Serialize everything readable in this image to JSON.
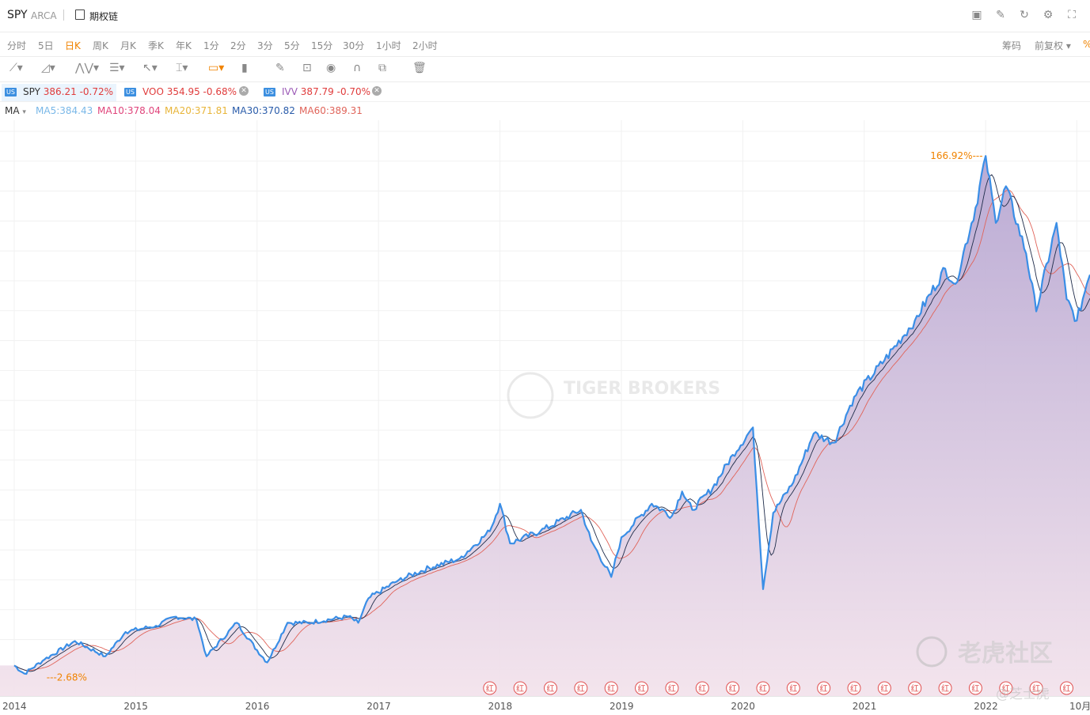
{
  "header": {
    "symbol": "SPY",
    "exchange": "ARCA",
    "options_chain": "期权链"
  },
  "periods": [
    "分时",
    "5日",
    "日K",
    "周K",
    "月K",
    "季K",
    "年K",
    "1分",
    "2分",
    "3分",
    "5分",
    "15分",
    "30分",
    "1小时",
    "2小时"
  ],
  "active_period": "日K",
  "right_controls": {
    "chips": "筹码",
    "adjust": "前复权",
    "percent": "%"
  },
  "comparisons": [
    {
      "badge": "US",
      "symbol": "SPY",
      "price": "386.21",
      "change": "-0.72%",
      "color": "#333333"
    },
    {
      "badge": "US",
      "symbol": "VOO",
      "price": "354.95",
      "change": "-0.68%",
      "color": "#e03c3c"
    },
    {
      "badge": "US",
      "symbol": "IVV",
      "price": "387.79",
      "change": "-0.70%",
      "color": "#9b59b6"
    }
  ],
  "indicator": {
    "name": "MA",
    "lines": [
      {
        "label": "MA5:384.43",
        "color": "#7ab8e8"
      },
      {
        "label": "MA10:378.04",
        "color": "#e0457b"
      },
      {
        "label": "MA20:371.81",
        "color": "#e8b53a"
      },
      {
        "label": "MA30:370.82",
        "color": "#2a5caa"
      },
      {
        "label": "MA60:389.31",
        "color": "#e0645a"
      }
    ]
  },
  "chart_data": {
    "type": "line",
    "series": [
      {
        "name": "SPY",
        "color": "#3a8ee6",
        "points": [
          [
            "2014-01",
            0.0
          ],
          [
            "2014-02",
            -2.68
          ],
          [
            "2014-04",
            2.0
          ],
          [
            "2014-07",
            8.0
          ],
          [
            "2014-10",
            3.0
          ],
          [
            "2014-12",
            11.0
          ],
          [
            "2015-03",
            13.0
          ],
          [
            "2015-05",
            16.0
          ],
          [
            "2015-07",
            15.0
          ],
          [
            "2015-08",
            3.0
          ],
          [
            "2015-11",
            14.0
          ],
          [
            "2016-01",
            5.0
          ],
          [
            "2016-02",
            1.0
          ],
          [
            "2016-04",
            14.0
          ],
          [
            "2016-06",
            14.0
          ],
          [
            "2016-10",
            16.0
          ],
          [
            "2016-11",
            14.0
          ],
          [
            "2016-12",
            22.0
          ],
          [
            "2017-03",
            28.0
          ],
          [
            "2017-06",
            32.0
          ],
          [
            "2017-09",
            35.0
          ],
          [
            "2017-12",
            44.0
          ],
          [
            "2018-01",
            53.0
          ],
          [
            "2018-02",
            40.0
          ],
          [
            "2018-05",
            44.0
          ],
          [
            "2018-09",
            51.0
          ],
          [
            "2018-10",
            41.0
          ],
          [
            "2018-12",
            29.0
          ],
          [
            "2019-01",
            42.0
          ],
          [
            "2019-04",
            53.0
          ],
          [
            "2019-06",
            49.0
          ],
          [
            "2019-07",
            57.0
          ],
          [
            "2019-08",
            51.0
          ],
          [
            "2019-10",
            58.0
          ],
          [
            "2019-12",
            69.0
          ],
          [
            "2020-02",
            78.0
          ],
          [
            "2020-03",
            25.0
          ],
          [
            "2020-04",
            50.0
          ],
          [
            "2020-06",
            60.0
          ],
          [
            "2020-08",
            76.0
          ],
          [
            "2020-10",
            73.0
          ],
          [
            "2020-12",
            88.0
          ],
          [
            "2021-03",
            100.0
          ],
          [
            "2021-06",
            113.0
          ],
          [
            "2021-09",
            130.0
          ],
          [
            "2021-10",
            125.0
          ],
          [
            "2021-12",
            150.0
          ],
          [
            "2022-01",
            166.92
          ],
          [
            "2022-02",
            145.0
          ],
          [
            "2022-03",
            157.0
          ],
          [
            "2022-05",
            135.0
          ],
          [
            "2022-06",
            116.0
          ],
          [
            "2022-08",
            145.0
          ],
          [
            "2022-09",
            120.0
          ],
          [
            "2022-10",
            113.0
          ],
          [
            "2022-11",
            125.0
          ]
        ]
      }
    ],
    "annotations": [
      {
        "label": "166.92%",
        "x": "2022-01",
        "y": 166.92
      },
      {
        "label": "2.68%",
        "x": "2014-02",
        "y": -2.68
      }
    ],
    "x_ticks": [
      "2014",
      "2015",
      "2016",
      "2017",
      "2018",
      "2019",
      "2020",
      "2021",
      "2022",
      "10月"
    ],
    "dividend_marker": "红",
    "dividend_dates": [
      "2017-12",
      "2018-03",
      "2018-06",
      "2018-09",
      "2018-12",
      "2019-03",
      "2019-06",
      "2019-09",
      "2019-12",
      "2020-03",
      "2020-06",
      "2020-09",
      "2020-12",
      "2021-03",
      "2021-06",
      "2021-09",
      "2021-12",
      "2022-03",
      "2022-06",
      "2022-09"
    ],
    "ylim": [
      -10,
      175
    ],
    "grid": true
  },
  "watermarks": {
    "brand_en": "TIGER BROKERS",
    "brand_cn": "老虎社区",
    "user": "@芝士虎"
  }
}
